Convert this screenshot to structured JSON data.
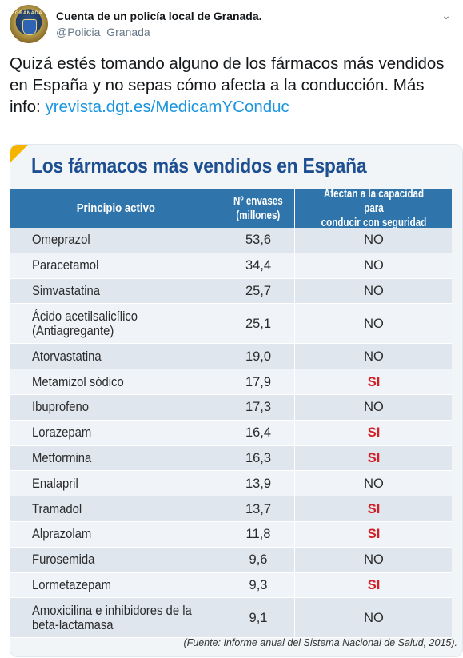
{
  "tweet": {
    "display_name": "Cuenta de un policía local de Granada.",
    "handle": "@Policia_Granada",
    "avatar_label": "GRANADA",
    "menu_icon": "chevron-down-icon",
    "text": "Quizá estés tomando alguno de los fármacos más vendidos en España y no sepas cómo afecta a la conducción. Más info: ",
    "link_text": "yrevista.dgt.es/MedicamYConduc"
  },
  "infographic": {
    "title": "Los fármacos más vendidos en España",
    "headers": {
      "principio": "Principio activo",
      "envases": [
        "Nº envases",
        "(millones)"
      ],
      "afectan": [
        "Afectan a la capacidad para",
        "conducir con seguridad"
      ]
    },
    "rows": [
      {
        "name": [
          "Omeprazol"
        ],
        "envases": "53,6",
        "afecta": "NO"
      },
      {
        "name": [
          "Paracetamol"
        ],
        "envases": "34,4",
        "afecta": "NO"
      },
      {
        "name": [
          "Simvastatina"
        ],
        "envases": "25,7",
        "afecta": "NO"
      },
      {
        "name": [
          "Ácido acetilsalicílico",
          "(Antiagregante)"
        ],
        "envases": "25,1",
        "afecta": "NO"
      },
      {
        "name": [
          "Atorvastatina"
        ],
        "envases": "19,0",
        "afecta": "NO"
      },
      {
        "name": [
          "Metamizol sódico"
        ],
        "envases": "17,9",
        "afecta": "SI"
      },
      {
        "name": [
          "Ibuprofeno"
        ],
        "envases": "17,3",
        "afecta": "NO"
      },
      {
        "name": [
          "Lorazepam"
        ],
        "envases": "16,4",
        "afecta": "SI"
      },
      {
        "name": [
          "Metformina"
        ],
        "envases": "16,3",
        "afecta": "SI"
      },
      {
        "name": [
          "Enalapril"
        ],
        "envases": "13,9",
        "afecta": "NO"
      },
      {
        "name": [
          "Tramadol"
        ],
        "envases": "13,7",
        "afecta": "SI"
      },
      {
        "name": [
          "Alprazolam"
        ],
        "envases": "11,8",
        "afecta": "SI"
      },
      {
        "name": [
          "Furosemida"
        ],
        "envases": "9,6",
        "afecta": "NO"
      },
      {
        "name": [
          "Lormetazepam"
        ],
        "envases": "9,3",
        "afecta": "SI"
      },
      {
        "name": [
          "Amoxicilina e inhibidores de la",
          "beta-lactamasa"
        ],
        "envases": "9,1",
        "afecta": "NO"
      }
    ],
    "source": "(Fuente: Informe anual del Sistema Nacional de Salud, 2015).",
    "colors": {
      "header_bg": "#2f75ab",
      "title": "#1d4f91",
      "si": "#d32027",
      "fold": "#f4b400"
    }
  }
}
